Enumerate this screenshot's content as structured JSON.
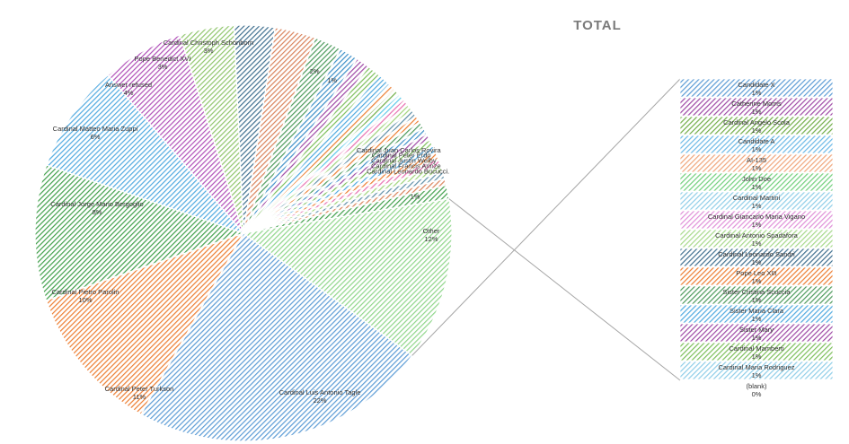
{
  "chart_data": {
    "type": "pie",
    "title": "TOTAL",
    "hatch_colors": [
      "#5b9bd5",
      "#ed7d31",
      "#70ad47",
      "#4472c4",
      "#a5a5a5",
      "#9e48a5",
      "#5bc8e8",
      "#e86fb1",
      "#9fd37a",
      "#5f8fa8"
    ],
    "slices": [
      {
        "label": "Cardinal Luis Antonio Tagle",
        "pct": "22%",
        "value": 22,
        "color": "#5b9bd5"
      },
      {
        "label": "Cardinal Peter Turkson",
        "pct": "11%",
        "value": 11,
        "color": "#ed7d31"
      },
      {
        "label": "Cardinal Pietro Parolin",
        "pct": "10%",
        "value": 10,
        "color": "#3f9f4a"
      },
      {
        "label": "Cardinal Jorge Mario Bergoglio",
        "pct": "8%",
        "value": 8,
        "color": "#4fa9e0"
      },
      {
        "label": "Cardinal Matteo Maria Zuppi",
        "pct": "6%",
        "value": 6,
        "color": "#b04fb8"
      },
      {
        "label": "Answer refused",
        "pct": "4%",
        "value": 4,
        "color": "#8fc56b"
      },
      {
        "label": "Pope Benedict XVI",
        "pct": "3%",
        "value": 3,
        "color": "#3f6f8f"
      },
      {
        "label": "Cardinal Christoph Schönborn",
        "pct": "3%",
        "value": 3,
        "color": "#d9825a"
      },
      {
        "label": "",
        "pct": "2%",
        "value": 2,
        "color": "#4c9a5b"
      },
      {
        "label": "",
        "pct": "1%",
        "value": 1.4,
        "color": "#3c8fc8"
      },
      {
        "label": "",
        "pct": "",
        "value": 1,
        "color": "#9e48a5"
      },
      {
        "label": "",
        "pct": "",
        "value": 1,
        "color": "#7cbf5a"
      },
      {
        "label": "",
        "pct": "",
        "value": 1,
        "color": "#4fa9e0"
      },
      {
        "label": "",
        "pct": "",
        "value": 0.5,
        "color": "#ed7d31"
      },
      {
        "label": "",
        "pct": "",
        "value": 0.5,
        "color": "#70ad47"
      },
      {
        "label": "",
        "pct": "",
        "value": 0.5,
        "color": "#5bc8e8"
      },
      {
        "label": "",
        "pct": "",
        "value": 0.5,
        "color": "#e86fb1"
      },
      {
        "label": "",
        "pct": "",
        "value": 0.5,
        "color": "#9fd37a"
      },
      {
        "label": "",
        "pct": "",
        "value": 0.5,
        "color": "#5f8fa8"
      },
      {
        "label": "",
        "pct": "",
        "value": 0.5,
        "color": "#ed7d31"
      },
      {
        "label": "",
        "pct": "",
        "value": 0.5,
        "color": "#4c9a5b"
      },
      {
        "label": "",
        "pct": "",
        "value": 0.5,
        "color": "#3c8fc8"
      },
      {
        "label": "Cardinal Juan Carlos Rovira",
        "pct": "",
        "value": 0.5,
        "color": "#9e48a5"
      },
      {
        "label": "Cardinal Peter Erdo",
        "pct": "",
        "value": 0.5,
        "color": "#7cbf5a"
      },
      {
        "label": "Cardinal Justin Welby",
        "pct": "",
        "value": 0.5,
        "color": "#4fa9e0"
      },
      {
        "label": "Cardinal Francis Arinze",
        "pct": "",
        "value": 0.5,
        "color": "#ed7d31"
      },
      {
        "label": "Cardinal Leonardo Bucucci.",
        "pct": "",
        "value": 0.5,
        "color": "#e86fb1"
      },
      {
        "label": "",
        "pct": "",
        "value": 0.5,
        "color": "#9fd37a"
      },
      {
        "label": "",
        "pct": "",
        "value": 0.5,
        "color": "#5f8fa8"
      },
      {
        "label": "",
        "pct": "",
        "value": 0.5,
        "color": "#d9825a"
      },
      {
        "label": "",
        "pct": "1%",
        "value": 1,
        "color": "#3f9f4a"
      },
      {
        "label": "Other",
        "pct": "12%",
        "value": 12,
        "color": "#8fd68a"
      }
    ],
    "other_breakdown": [
      {
        "label": "Candidate X",
        "pct": "1%",
        "color": "#5b9bd5"
      },
      {
        "label": "Catherine Morris",
        "pct": "1%",
        "color": "#9e48a5"
      },
      {
        "label": "Cardinal Angelo Scola",
        "pct": "1%",
        "color": "#70ad47"
      },
      {
        "label": "Candidate A",
        "pct": "1%",
        "color": "#6ab8e6"
      },
      {
        "label": "AI-135",
        "pct": "1%",
        "color": "#f0a57a"
      },
      {
        "label": "John Doe",
        "pct": "1%",
        "color": "#6fcf7a"
      },
      {
        "label": "Cardinal Martini",
        "pct": "1%",
        "color": "#8ecde8"
      },
      {
        "label": "Cardinal Giancarlo Maria Vigano",
        "pct": "1%",
        "color": "#e08fd8"
      },
      {
        "label": "Cardinal Antonio Spadafora",
        "pct": "1%",
        "color": "#a6d98a"
      },
      {
        "label": "Cardinal Leonardo Sandri",
        "pct": "1%",
        "color": "#3f6f8f"
      },
      {
        "label": "Pope Leo XIII",
        "pct": "1%",
        "color": "#ed7d31"
      },
      {
        "label": "Sister Cristina Scuccia",
        "pct": "1%",
        "color": "#4c9a5b"
      },
      {
        "label": "Sister Maria Clara",
        "pct": "1%",
        "color": "#4fa9e0"
      },
      {
        "label": "Sister Mary",
        "pct": "1%",
        "color": "#9e48a5"
      },
      {
        "label": "Cardinal Mamberti",
        "pct": "1%",
        "color": "#7cbf5a"
      },
      {
        "label": "Cardinal Maria Rodriguez",
        "pct": "1%",
        "color": "#8ecde8"
      },
      {
        "label": "(blank)",
        "pct": "0%",
        "color": ""
      }
    ]
  }
}
